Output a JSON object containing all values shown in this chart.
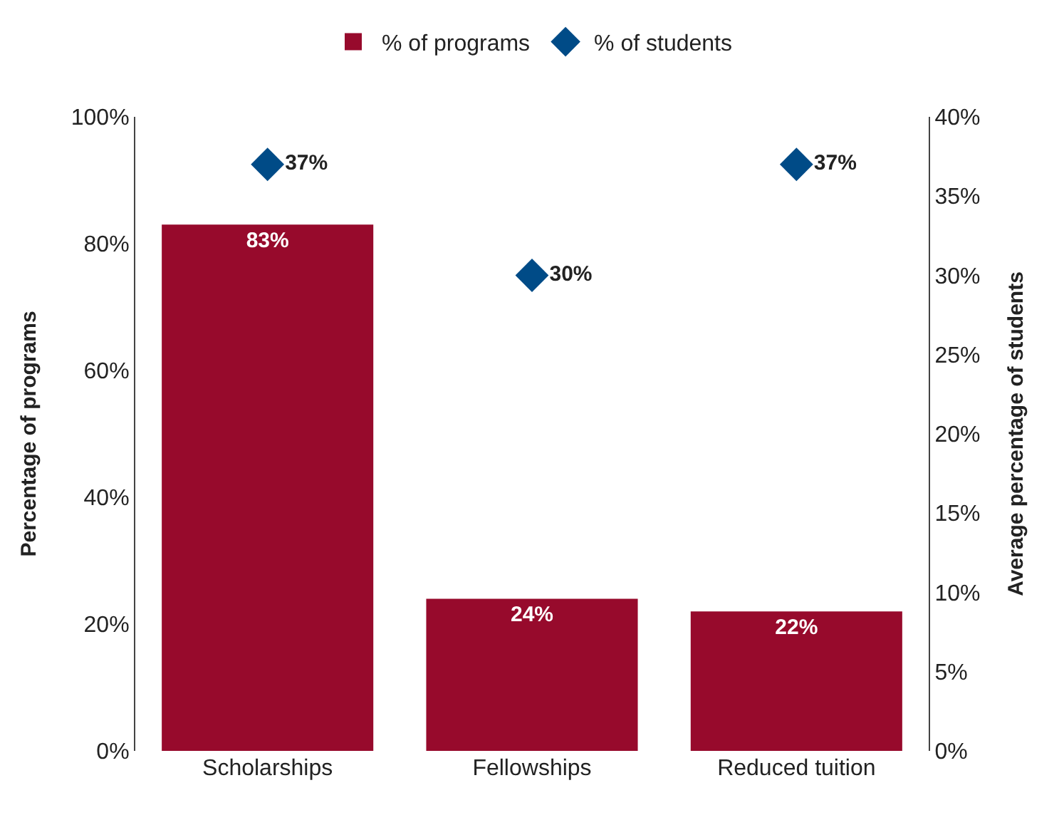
{
  "chart_data": {
    "type": "bar",
    "categories": [
      "Scholarships",
      "Fellowships",
      "Reduced tuition"
    ],
    "ylabel": "Percentage of programs",
    "y2label": "Average percentage of students",
    "ylim": [
      0,
      100
    ],
    "yticks": [
      {
        "value": 0,
        "label": "0%"
      },
      {
        "value": 20,
        "label": "20%"
      },
      {
        "value": 40,
        "label": "40%"
      },
      {
        "value": 60,
        "label": "60%"
      },
      {
        "value": 80,
        "label": "80%"
      },
      {
        "value": 100,
        "label": "100%"
      }
    ],
    "y2lim": [
      0,
      40
    ],
    "y2ticks": [
      {
        "value": 0,
        "label": "0%"
      },
      {
        "value": 5,
        "label": "5%"
      },
      {
        "value": 10,
        "label": "10%"
      },
      {
        "value": 15,
        "label": "15%"
      },
      {
        "value": 20,
        "label": "20%"
      },
      {
        "value": 25,
        "label": "25%"
      },
      {
        "value": 30,
        "label": "30%"
      },
      {
        "value": 35,
        "label": "35%"
      },
      {
        "value": 40,
        "label": "40%"
      }
    ],
    "series": [
      {
        "name": "% of programs",
        "color": "#970a2c",
        "values": [
          83,
          24,
          22
        ],
        "value_labels": [
          "83%",
          "24%",
          "22%"
        ]
      },
      {
        "name": "% of students",
        "type": "scatter",
        "axis": "y2",
        "marker": "diamond",
        "color": "#004b87",
        "x": [
          "Scholarships",
          "Fellowships",
          "Reduced tuition"
        ],
        "values": [
          37,
          30,
          37
        ],
        "value_labels": [
          "37%",
          "30%",
          "37%"
        ]
      }
    ],
    "grid": false,
    "legend": "top"
  }
}
